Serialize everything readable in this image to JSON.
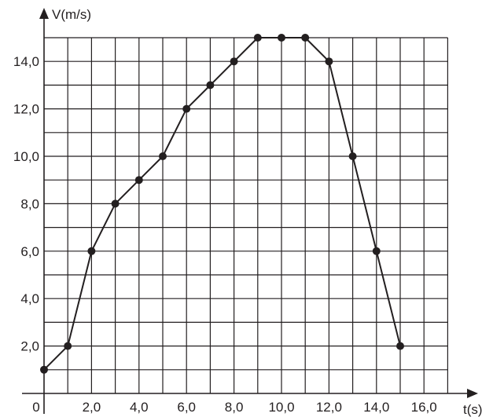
{
  "chart_data": {
    "type": "line",
    "xlabel": "t(s)",
    "ylabel": "V(m/s)",
    "origin_label": "0",
    "xlim": [
      0,
      17
    ],
    "ylim": [
      0,
      15
    ],
    "grid": true,
    "x_ticks": [
      {
        "value": 2,
        "label": "2,0"
      },
      {
        "value": 4,
        "label": "4,0"
      },
      {
        "value": 6,
        "label": "6,0"
      },
      {
        "value": 8,
        "label": "8,0"
      },
      {
        "value": 10,
        "label": "10,0"
      },
      {
        "value": 12,
        "label": "12,0"
      },
      {
        "value": 14,
        "label": "14,0"
      },
      {
        "value": 16,
        "label": "16,0"
      }
    ],
    "y_ticks": [
      {
        "value": 2,
        "label": "2,0"
      },
      {
        "value": 4,
        "label": "4,0"
      },
      {
        "value": 6,
        "label": "6,0"
      },
      {
        "value": 8,
        "label": "8,0"
      },
      {
        "value": 10,
        "label": "10,0"
      },
      {
        "value": 12,
        "label": "12,0"
      },
      {
        "value": 14,
        "label": "14,0"
      }
    ],
    "series": [
      {
        "x": [
          0,
          1,
          2,
          3,
          4,
          5,
          6,
          7,
          8,
          9,
          10,
          11,
          12,
          13,
          14,
          15
        ],
        "y": [
          1,
          2,
          6,
          8,
          9,
          10,
          12,
          13,
          14,
          15,
          15,
          15,
          14,
          10,
          6,
          2
        ]
      }
    ],
    "colors": {
      "ink": "#231f20",
      "background": "#ffffff"
    }
  }
}
